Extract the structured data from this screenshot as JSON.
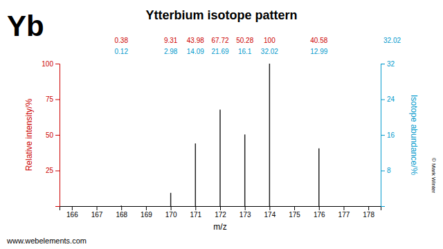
{
  "chart_data": {
    "type": "bar",
    "title": "Ytterbium isotope pattern",
    "xlabel": "m/z",
    "ylabel": "Relative intensity/%",
    "y2label": "Isotope abundance/%",
    "x": [
      168,
      170,
      171,
      172,
      173,
      174,
      176
    ],
    "series": [
      {
        "color": "#cc0000",
        "values": [
          0.38,
          9.31,
          43.98,
          67.72,
          50.28,
          100.0,
          40.58
        ]
      },
      {
        "type": "text",
        "axis": "y2",
        "color": "#0099cc",
        "values": [
          0.12,
          2.98,
          14.09,
          21.69,
          16.1,
          32.02,
          12.99
        ]
      }
    ],
    "xlim": [
      165.5,
      178.5
    ],
    "xticks": [
      166,
      167,
      168,
      169,
      170,
      171,
      172,
      173,
      174,
      175,
      176,
      177,
      178
    ],
    "ylim": [
      0,
      100
    ],
    "yticks": [
      25,
      50,
      75,
      100
    ],
    "y2lim": [
      0,
      32.02
    ],
    "y2ticks": [
      8,
      16,
      24,
      32
    ],
    "data_labels": true,
    "grid": false,
    "annotations": [
      "Yb",
      "www.webelements.com",
      "© Mark Winter"
    ]
  }
}
